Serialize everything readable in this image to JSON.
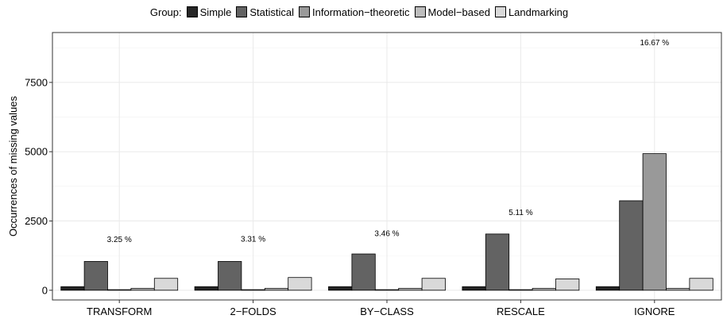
{
  "chart_data": {
    "type": "bar",
    "legend": {
      "title": "Group:",
      "position": "top"
    },
    "categories": [
      "TRANSFORM",
      "2−FOLDS",
      "BY−CLASS",
      "RESCALE",
      "IGNORE"
    ],
    "series": [
      {
        "name": "Simple",
        "color": "#262626",
        "values": [
          130,
          130,
          130,
          130,
          130
        ]
      },
      {
        "name": "Statistical",
        "color": "#636363",
        "values": [
          1040,
          1040,
          1310,
          2030,
          3230
        ]
      },
      {
        "name": "Information−theoretic",
        "color": "#999999",
        "values": [
          20,
          20,
          20,
          20,
          4930
        ]
      },
      {
        "name": "Model−based",
        "color": "#bdbdbd",
        "values": [
          70,
          70,
          70,
          70,
          70
        ]
      },
      {
        "name": "Landmarking",
        "color": "#d9d9d9",
        "values": [
          430,
          460,
          430,
          410,
          430
        ]
      }
    ],
    "annotations": [
      {
        "category": "TRANSFORM",
        "text": "3.25 %",
        "y": 1850
      },
      {
        "category": "2−FOLDS",
        "text": "3.31 %",
        "y": 1870
      },
      {
        "category": "BY−CLASS",
        "text": "3.46 %",
        "y": 2070
      },
      {
        "category": "RESCALE",
        "text": "5.11 %",
        "y": 2830
      },
      {
        "category": "IGNORE",
        "text": "16.67 %",
        "y": 8960
      }
    ],
    "ylabel": "Occurrences of missing values",
    "xlabel": "",
    "ylim": [
      -350,
      9300
    ],
    "yticks": [
      0,
      2500,
      5000,
      7500
    ],
    "grid": true
  }
}
